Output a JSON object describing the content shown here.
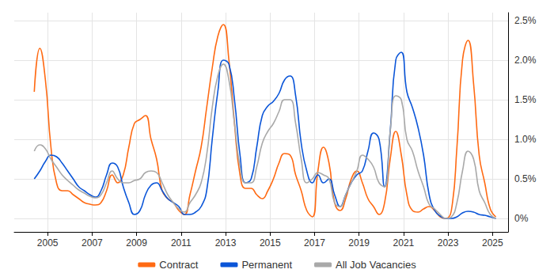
{
  "chart_data": {
    "type": "line",
    "x": [
      2004.4,
      2004.65,
      2004.9,
      2005.15,
      2005.4,
      2005.65,
      2005.9,
      2006.15,
      2006.4,
      2006.65,
      2006.9,
      2007.15,
      2007.4,
      2007.65,
      2007.9,
      2008.15,
      2008.4,
      2008.65,
      2008.9,
      2009.15,
      2009.4,
      2009.65,
      2009.9,
      2010.15,
      2010.4,
      2010.65,
      2010.9,
      2011.15,
      2011.4,
      2011.65,
      2011.9,
      2012.15,
      2012.4,
      2012.65,
      2012.9,
      2013.15,
      2013.4,
      2013.65,
      2013.9,
      2014.15,
      2014.4,
      2014.65,
      2014.9,
      2015.15,
      2015.4,
      2015.65,
      2015.9,
      2016.15,
      2016.4,
      2016.65,
      2016.9,
      2017.15,
      2017.4,
      2017.65,
      2017.9,
      2018.15,
      2018.4,
      2018.65,
      2018.9,
      2019.15,
      2019.4,
      2019.65,
      2019.9,
      2020.15,
      2020.4,
      2020.65,
      2020.9,
      2021.15,
      2021.4,
      2021.65,
      2021.9,
      2022.15,
      2022.4,
      2022.65,
      2022.9,
      2023.15,
      2023.4,
      2023.65,
      2023.9,
      2024.15,
      2024.4,
      2024.65,
      2024.9,
      2025.15
    ],
    "series": [
      {
        "name": "Contract",
        "color": "#ff6a13",
        "values": [
          1.6,
          2.15,
          1.75,
          0.9,
          0.45,
          0.35,
          0.35,
          0.3,
          0.25,
          0.2,
          0.18,
          0.17,
          0.2,
          0.35,
          0.55,
          0.45,
          0.55,
          0.9,
          1.2,
          1.25,
          1.3,
          1.0,
          0.75,
          0.35,
          0.25,
          0.2,
          0.1,
          0.05,
          0.3,
          0.6,
          0.9,
          1.4,
          1.9,
          2.3,
          2.45,
          2.0,
          1.2,
          0.55,
          0.38,
          0.38,
          0.3,
          0.25,
          0.35,
          0.5,
          0.7,
          0.82,
          0.8,
          0.55,
          0.35,
          0.1,
          0.02,
          0.6,
          0.9,
          0.7,
          0.2,
          0.1,
          0.25,
          0.5,
          0.6,
          0.45,
          0.25,
          0.15,
          0.05,
          0.2,
          0.75,
          1.1,
          0.8,
          0.3,
          0.1,
          0.08,
          0.12,
          0.15,
          0.1,
          0.02,
          0.0,
          0.1,
          0.9,
          2.0,
          2.25,
          1.7,
          0.8,
          0.45,
          0.12,
          0.02
        ]
      },
      {
        "name": "Permanent",
        "color": "#0a55d8",
        "values": [
          0.5,
          0.6,
          0.72,
          0.8,
          0.78,
          0.7,
          0.6,
          0.5,
          0.4,
          0.35,
          0.3,
          0.27,
          0.35,
          0.55,
          0.7,
          0.65,
          0.4,
          0.2,
          0.05,
          0.1,
          0.3,
          0.42,
          0.45,
          0.35,
          0.25,
          0.2,
          0.15,
          0.05,
          0.05,
          0.08,
          0.15,
          0.35,
          1.0,
          1.6,
          2.0,
          1.95,
          1.5,
          0.8,
          0.45,
          0.5,
          0.9,
          1.3,
          1.42,
          1.48,
          1.58,
          1.75,
          1.8,
          1.55,
          0.95,
          0.6,
          0.45,
          0.55,
          0.45,
          0.5,
          0.3,
          0.15,
          0.3,
          0.45,
          0.55,
          0.6,
          0.85,
          1.08,
          1.0,
          0.4,
          1.1,
          2.0,
          2.1,
          1.6,
          1.4,
          1.15,
          0.8,
          0.3,
          0.1,
          0.03,
          0.0,
          0.0,
          0.02,
          0.07,
          0.09,
          0.08,
          0.05,
          0.04,
          0.02,
          0.0
        ]
      },
      {
        "name": "All Job Vacancies",
        "color": "#a9a9a9",
        "values": [
          0.85,
          0.93,
          0.88,
          0.75,
          0.65,
          0.55,
          0.48,
          0.42,
          0.36,
          0.32,
          0.28,
          0.26,
          0.3,
          0.45,
          0.6,
          0.5,
          0.45,
          0.45,
          0.48,
          0.5,
          0.58,
          0.6,
          0.58,
          0.45,
          0.3,
          0.2,
          0.12,
          0.08,
          0.2,
          0.3,
          0.45,
          0.8,
          1.4,
          1.8,
          1.95,
          1.75,
          1.2,
          0.65,
          0.45,
          0.45,
          0.65,
          0.95,
          1.1,
          1.2,
          1.35,
          1.5,
          1.5,
          1.2,
          0.75,
          0.45,
          0.5,
          0.58,
          0.55,
          0.5,
          0.2,
          0.15,
          0.3,
          0.45,
          0.6,
          0.8,
          0.75,
          0.65,
          0.45,
          0.4,
          1.1,
          1.55,
          1.5,
          1.0,
          0.85,
          0.6,
          0.4,
          0.18,
          0.12,
          0.05,
          0.0,
          0.02,
          0.2,
          0.6,
          0.85,
          0.75,
          0.35,
          0.2,
          0.05,
          0.0
        ]
      }
    ],
    "xlim": [
      2003.5,
      2025.7
    ],
    "xticks": [
      2005,
      2007,
      2009,
      2011,
      2013,
      2015,
      2017,
      2019,
      2021,
      2023,
      2025
    ],
    "ylim": [
      -0.17,
      2.6
    ],
    "yticks": [
      {
        "value": 0,
        "label": "0%"
      },
      {
        "value": 0.5,
        "label": "0.5%"
      },
      {
        "value": 1,
        "label": "1.0%"
      },
      {
        "value": 1.5,
        "label": "1.5%"
      },
      {
        "value": 2,
        "label": "2.0%"
      },
      {
        "value": 2.5,
        "label": "2.5%"
      }
    ],
    "grid": true,
    "legend": "bottom"
  }
}
